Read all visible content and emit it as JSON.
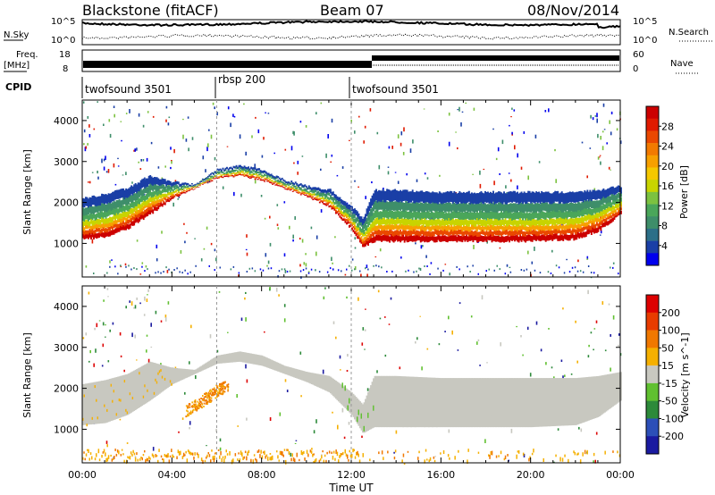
{
  "header": {
    "station": "Blackstone (fitACF)",
    "beam": "Beam 07",
    "date": "08/Nov/2014"
  },
  "strips": {
    "nsky_label": "N.Sky",
    "nsearch_label": "N.Search",
    "nsky_ticks": [
      "10^5",
      "10^0"
    ],
    "nsearch_ticks": [
      "10^5",
      "10^0"
    ],
    "freq_label_1": "Freq.",
    "freq_label_2": "[MHz]",
    "freq_ticks": [
      "18",
      "8"
    ],
    "nave_label": "Nave",
    "nave_ticks": [
      "60",
      "0"
    ],
    "cpid_label": "CPID",
    "cpid_segments": [
      "twofsound 3501",
      "rbsp 200",
      "twofsound 3501"
    ]
  },
  "chart_data": [
    {
      "type": "heatmap",
      "name": "power-panel",
      "ylabel": "Slant Range [km]",
      "yticks": [
        "4000",
        "3000",
        "2000",
        "1000"
      ],
      "ylim": [
        180,
        4500
      ],
      "xlim": [
        0,
        24
      ],
      "colorbar_label": "Power [dB]",
      "colorbar_ticks": [
        "28",
        "24",
        "20",
        "16",
        "12",
        "8",
        "4"
      ],
      "colorbar_colors": [
        "#0000ee",
        "#1a3fa6",
        "#2c6f88",
        "#3e8e6a",
        "#4aa65a",
        "#7cc240",
        "#c8d400",
        "#f5c800",
        "#f7a000",
        "#f27a00",
        "#ea4800",
        "#e01a00",
        "#cc0000"
      ],
      "series": [
        {
          "name": "main-echo-lower-edge",
          "x": [
            0,
            1,
            2,
            3,
            4,
            5,
            6,
            7,
            8,
            9,
            10,
            11,
            12,
            12.5,
            13,
            14,
            16,
            18,
            20,
            22,
            23,
            24
          ],
          "y": [
            1100,
            1150,
            1350,
            1700,
            2100,
            2350,
            2600,
            2650,
            2550,
            2350,
            2150,
            1900,
            1350,
            900,
            1050,
            1050,
            1050,
            1050,
            1050,
            1100,
            1300,
            1700
          ]
        },
        {
          "name": "main-echo-upper-edge",
          "x": [
            0,
            1,
            2,
            3,
            4,
            5,
            6,
            7,
            8,
            9,
            10,
            11,
            12,
            12.5,
            13,
            14,
            16,
            18,
            20,
            22,
            23,
            24
          ],
          "y": [
            2100,
            2200,
            2350,
            2650,
            2500,
            2450,
            2800,
            2900,
            2800,
            2550,
            2400,
            2300,
            1900,
            1600,
            2300,
            2300,
            2250,
            2250,
            2250,
            2250,
            2300,
            2400
          ]
        }
      ]
    },
    {
      "type": "heatmap",
      "name": "velocity-panel",
      "ylabel": "Slant Range [km]",
      "yticks": [
        "4000",
        "3000",
        "2000",
        "1000"
      ],
      "ylim": [
        180,
        4500
      ],
      "xlim": [
        0,
        24
      ],
      "colorbar_label": "Velocity [m s^-1]",
      "colorbar_ticks": [
        "200",
        "100",
        "50",
        "15",
        "-15",
        "-50",
        "-100",
        "-200"
      ],
      "colorbar_colors": [
        "#1a1aa0",
        "#2c4fb8",
        "#2d8a3a",
        "#60c030",
        "#c8c8c0",
        "#f5b000",
        "#f07800",
        "#e83c00",
        "#dd0000"
      ],
      "x_ticks": [
        "00:00",
        "04:00",
        "08:00",
        "12:00",
        "16:00",
        "20:00",
        "00:00"
      ],
      "xlabel": "Time UT"
    }
  ]
}
